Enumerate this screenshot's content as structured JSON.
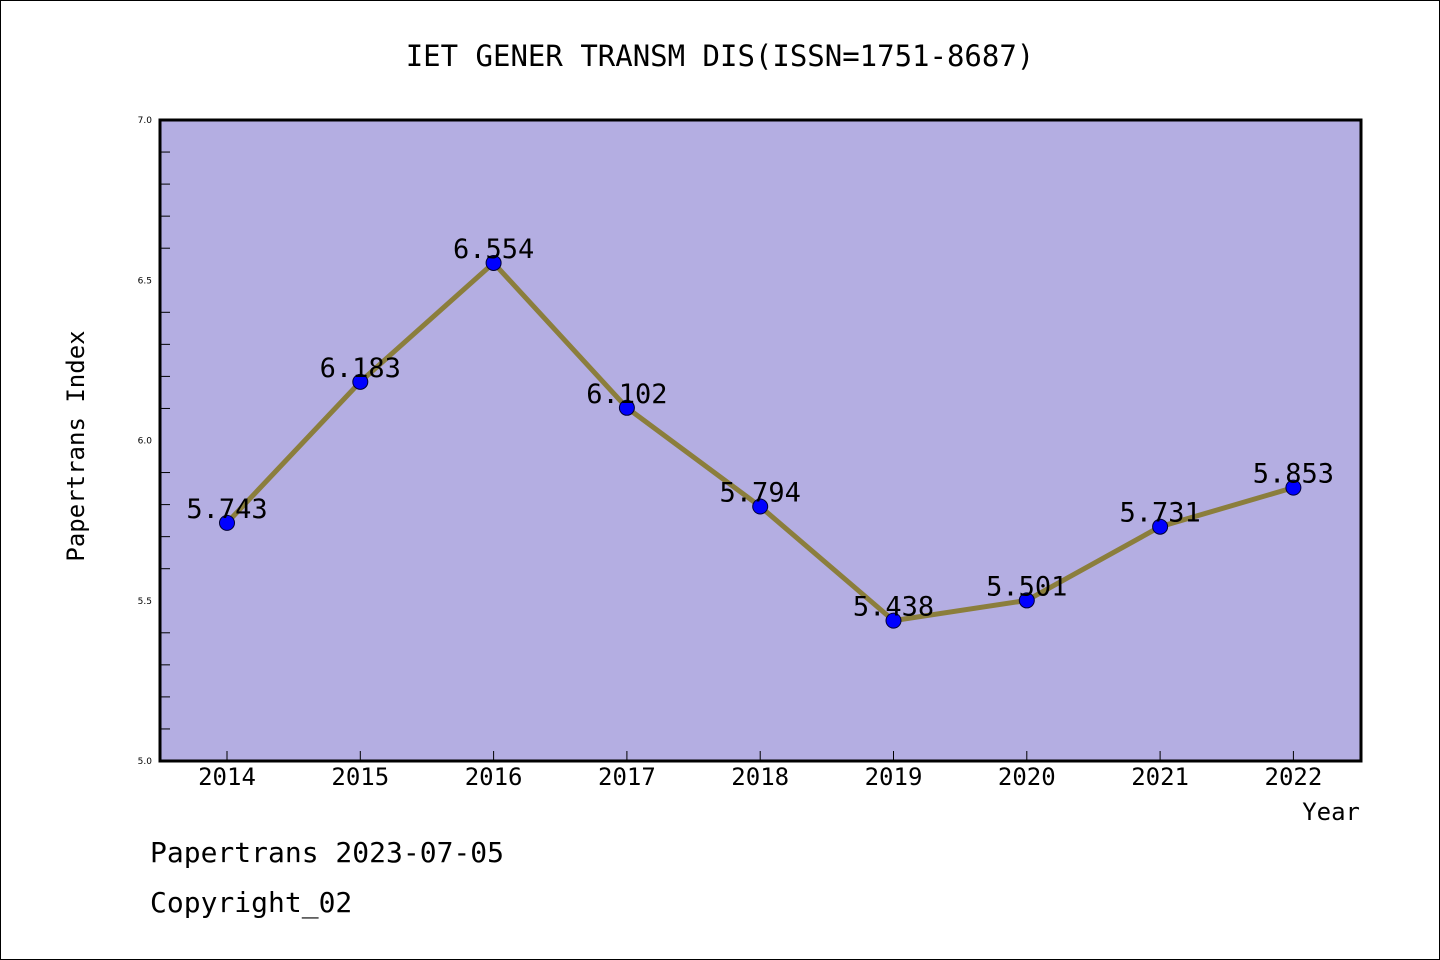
{
  "chart_data": {
    "type": "line",
    "title": "IET GENER TRANSM DIS(ISSN=1751-8687)",
    "xlabel": "Year",
    "ylabel": "Papertrans Index",
    "categories": [
      "2014",
      "2015",
      "2016",
      "2017",
      "2018",
      "2019",
      "2020",
      "2021",
      "2022"
    ],
    "values": [
      5.743,
      6.183,
      6.554,
      6.102,
      5.794,
      5.438,
      5.501,
      5.731,
      5.853
    ],
    "value_labels": [
      "5.743",
      "6.183",
      "6.554",
      "6.102",
      "5.794",
      "5.438",
      "5.501",
      "5.731",
      "5.853"
    ],
    "ylim": [
      5.0,
      7.0
    ],
    "y_ticks": [
      "5.0",
      "5.5",
      "6.0",
      "6.5",
      "7.0"
    ],
    "grid": false,
    "colors": {
      "plot_background": "#b4aee2",
      "line": "#8b7e3c",
      "marker": "#0000ff"
    }
  },
  "footer": {
    "line1": "Papertrans 2023-07-05",
    "line2": "Copyright_02"
  }
}
